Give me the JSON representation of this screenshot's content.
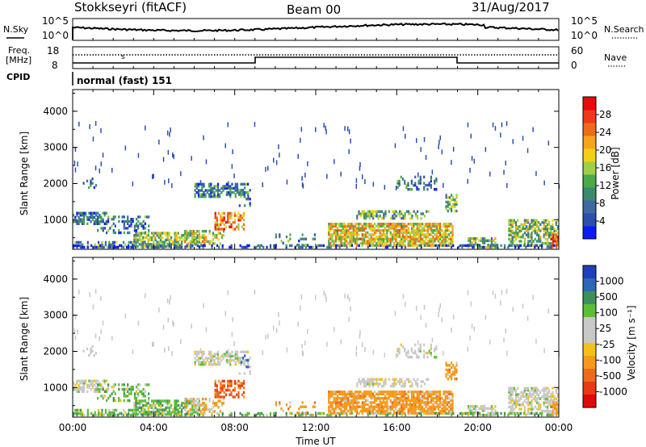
{
  "header": {
    "station": "Stokkseyri (fitACF)",
    "beam": "Beam 00",
    "date": "31/Aug/2017"
  },
  "left_labels": {
    "nsky": "N.Sky",
    "freq_line1": "Freq.",
    "freq_line2": "[MHz]",
    "cpid": "CPID"
  },
  "right_labels": {
    "nsearch": "N.Search",
    "nave": "Nave"
  },
  "noise_panel": {
    "left_ticks": [
      "10^5",
      "10^0"
    ],
    "right_ticks": [
      "10^5",
      "10^0"
    ]
  },
  "freq_panel": {
    "left_ticks": [
      "18",
      "8"
    ],
    "right_ticks": [
      "60",
      "0"
    ]
  },
  "cpid_text": "normal (fast) 151",
  "chart_data": [
    {
      "type": "heatmap",
      "name": "power",
      "ylabel": "Slant Range [km]",
      "yticks": [
        "1000",
        "2000",
        "3000",
        "4000"
      ],
      "ylim": [
        180,
        4600
      ],
      "xlim": [
        0,
        24
      ],
      "colorbar_label": "Power [dB]",
      "colorbar_ticks": [
        "4",
        "8",
        "12",
        "16",
        "20",
        "24",
        "28"
      ],
      "colorbar_colors": [
        "#0a1cf0",
        "#2a4fb0",
        "#3f6aa0",
        "#3b8a6e",
        "#4ba94a",
        "#9dd04a",
        "#f2d018",
        "#f5a51a",
        "#ef6b1c",
        "#ee3a1a",
        "#e80b0b"
      ]
    },
    {
      "type": "heatmap",
      "name": "velocity",
      "ylabel": "Slant Range [km]",
      "yticks": [
        "1000",
        "2000",
        "3000",
        "4000"
      ],
      "ylim": [
        180,
        4600
      ],
      "xlim": [
        0,
        24
      ],
      "xlabel": "Time UT",
      "xticks": [
        "00:00",
        "04:00",
        "08:00",
        "12:00",
        "16:00",
        "20:00",
        "00:00"
      ],
      "colorbar_label": "Velocity [m s⁻¹]",
      "colorbar_ticks": [
        "1000",
        "500",
        "100",
        "25",
        "-25",
        "-100",
        "-500",
        "-1000"
      ],
      "colorbar_colors": [
        "#1f3fbf",
        "#2e68b5",
        "#3f8f5a",
        "#5cbd3a",
        "#c8c8c8",
        "#c8c8c8",
        "#f2c21a",
        "#f59a1a",
        "#ef6b1c",
        "#e83a14",
        "#e00a0a"
      ]
    }
  ]
}
